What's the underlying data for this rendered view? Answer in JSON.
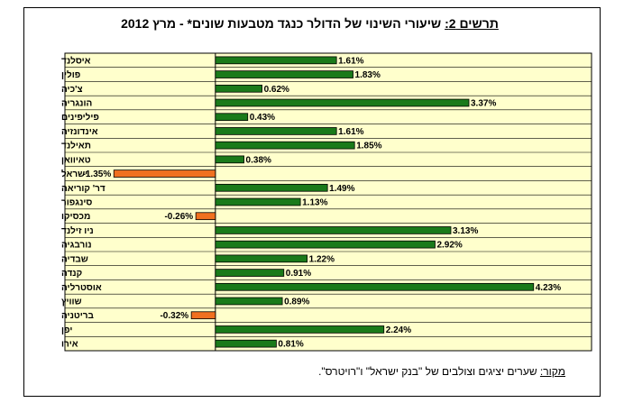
{
  "title": {
    "lead": "תרשים 2:",
    "text": " שיעורי השינוי של הדולר כנגד מטבעות שונים* - מרץ 2012"
  },
  "source": {
    "lead": "מקור:",
    "text": " שערים יציגים וצולבים של \"בנק ישראל\" ו\"רויטרס\"."
  },
  "colors": {
    "positive": "#1a7a1a",
    "negative": "#f07020",
    "plot_bg": "#ffffcc",
    "grid": "#000000"
  },
  "chart_data": {
    "type": "bar",
    "orientation": "horizontal",
    "categories": [
      "איסלנד",
      "פולין",
      "צ'כיה",
      "הונגריה",
      "פיליפינים",
      "אינדונזיה",
      "תאילנד",
      "טאיוואן",
      "ישראל",
      "דר' קוריאה",
      "סינגפור",
      "מכסיקו",
      "ניו זילנד",
      "נורבגיה",
      "שבדיה",
      "קנדה",
      "אוסטרליה",
      "שוויץ",
      "בריטניה",
      "יפן",
      "אירו"
    ],
    "values": [
      1.61,
      1.83,
      0.62,
      3.37,
      0.43,
      1.61,
      1.85,
      0.38,
      -1.35,
      1.49,
      1.13,
      -0.26,
      3.13,
      2.92,
      1.22,
      0.91,
      4.23,
      0.89,
      -0.32,
      2.24,
      0.81
    ],
    "labels": [
      "1.61%",
      "1.83%",
      "0.62%",
      "3.37%",
      "0.43%",
      "1.61%",
      "1.85%",
      "0.38%",
      "-1.35%",
      "1.49%",
      "1.13%",
      "-0.26%",
      "3.13%",
      "2.92%",
      "1.22%",
      "0.91%",
      "4.23%",
      "0.89%",
      "-0.32%",
      "2.24%",
      "0.81%"
    ],
    "xlim": [
      -2.0,
      5.0
    ],
    "grid": true,
    "title": "",
    "xlabel": "",
    "ylabel": ""
  }
}
